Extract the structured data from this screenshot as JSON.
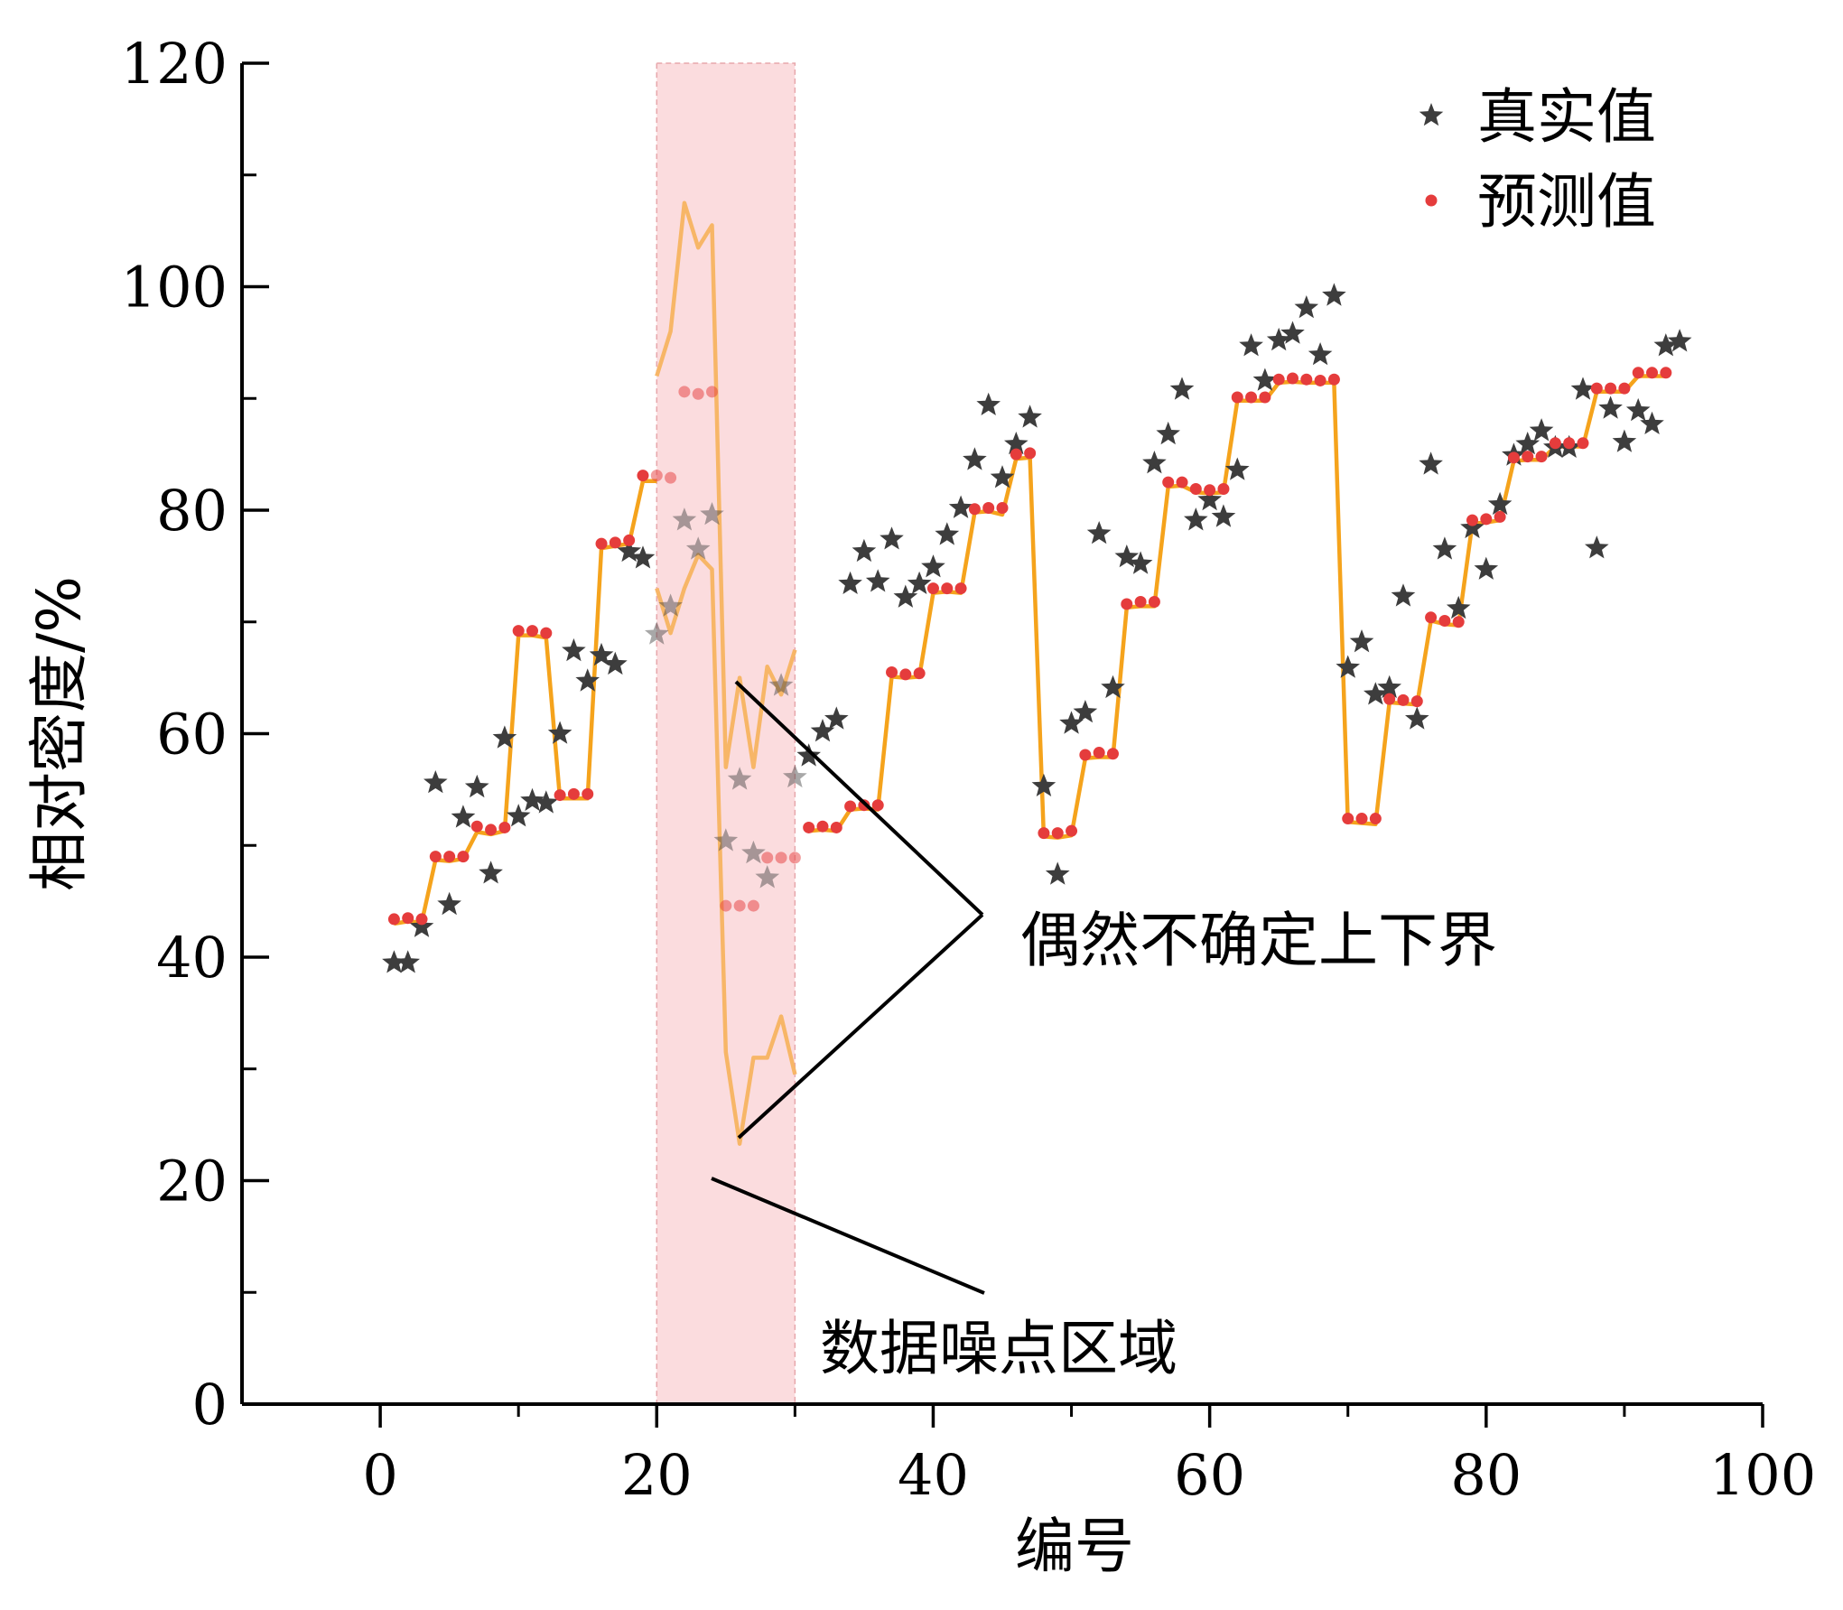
{
  "chart_data": {
    "type": "scatter",
    "title": "",
    "xlabel": "编号",
    "ylabel": "相对密度/%",
    "xlim": [
      -10,
      100
    ],
    "ylim": [
      0,
      120
    ],
    "x_major_ticks": [
      0,
      20,
      40,
      60,
      80,
      100
    ],
    "x_minor_ticks": [
      10,
      30,
      50,
      70,
      90
    ],
    "y_major_ticks": [
      0,
      20,
      40,
      60,
      80,
      100,
      120
    ],
    "y_minor_ticks": [
      10,
      30,
      50,
      70,
      90,
      110
    ],
    "x_tick_labels": [
      "0",
      "20",
      "40",
      "60",
      "80",
      "100"
    ],
    "y_tick_labels": [
      "0",
      "20",
      "40",
      "60",
      "80",
      "100",
      "120"
    ],
    "grid": false,
    "legend_position": "top-right",
    "noise_region": {
      "x_range": [
        20,
        30
      ],
      "color": "#fbdcde",
      "label": "数据噪点区域"
    },
    "bounds_label": "偶然不确定上下界",
    "series": [
      {
        "name": "真实值",
        "marker": "star",
        "color": "#3d3d3d",
        "points": [
          [
            1,
            39.5
          ],
          [
            2,
            39.5
          ],
          [
            3,
            42.7
          ],
          [
            4,
            55.6
          ],
          [
            5,
            44.7
          ],
          [
            6,
            52.5
          ],
          [
            7,
            55.2
          ],
          [
            8,
            47.5
          ],
          [
            9,
            59.6
          ],
          [
            10,
            52.6
          ],
          [
            11,
            54
          ],
          [
            12,
            53.8
          ],
          [
            13,
            60
          ],
          [
            14,
            67.4
          ],
          [
            15,
            64.7
          ],
          [
            16,
            67
          ],
          [
            17,
            66.2
          ],
          [
            18,
            76.3
          ],
          [
            19,
            75.7
          ],
          [
            20,
            68.9
          ],
          [
            21,
            71.4
          ],
          [
            22,
            79.1
          ],
          [
            23,
            76.5
          ],
          [
            24,
            79.6
          ],
          [
            25,
            50.4
          ],
          [
            26,
            55.9
          ],
          [
            27,
            49.3
          ],
          [
            28,
            47.1
          ],
          [
            29,
            64.3
          ],
          [
            30,
            56.1
          ],
          [
            31,
            58
          ],
          [
            32,
            60.2
          ],
          [
            33,
            61.3
          ],
          [
            34,
            73.4
          ],
          [
            35,
            76.3
          ],
          [
            36,
            73.6
          ],
          [
            37,
            77.4
          ],
          [
            38,
            72.2
          ],
          [
            39,
            73.4
          ],
          [
            40,
            74.9
          ],
          [
            41,
            77.8
          ],
          [
            42,
            80.2
          ],
          [
            43,
            84.5
          ],
          [
            44,
            89.4
          ],
          [
            45,
            82.9
          ],
          [
            46,
            85.9
          ],
          [
            47,
            88.3
          ],
          [
            48,
            55.3
          ],
          [
            49,
            47.4
          ],
          [
            50,
            60.9
          ],
          [
            51,
            61.9
          ],
          [
            52,
            77.9
          ],
          [
            53,
            64.1
          ],
          [
            54,
            75.8
          ],
          [
            55,
            75.2
          ],
          [
            56,
            84.2
          ],
          [
            57,
            86.8
          ],
          [
            58,
            90.8
          ],
          [
            59,
            79.1
          ],
          [
            60,
            80.9
          ],
          [
            61,
            79.4
          ],
          [
            62,
            83.6
          ],
          [
            63,
            94.7
          ],
          [
            64,
            91.6
          ],
          [
            65,
            95.2
          ],
          [
            66,
            95.8
          ],
          [
            67,
            98.1
          ],
          [
            68,
            93.9
          ],
          [
            69,
            99.2
          ],
          [
            70,
            65.9
          ],
          [
            71,
            68.2
          ],
          [
            72,
            63.5
          ],
          [
            73,
            64.1
          ],
          [
            74,
            72.3
          ],
          [
            75,
            61.3
          ],
          [
            76,
            84.1
          ],
          [
            77,
            76.5
          ],
          [
            78,
            71.2
          ],
          [
            79,
            78.4
          ],
          [
            80,
            74.7
          ],
          [
            81,
            80.5
          ],
          [
            82,
            84.9
          ],
          [
            83,
            85.9
          ],
          [
            84,
            87.1
          ],
          [
            85,
            85.6
          ],
          [
            86,
            85.6
          ],
          [
            87,
            90.8
          ],
          [
            88,
            76.6
          ],
          [
            89,
            89.1
          ],
          [
            90,
            86.1
          ],
          [
            91,
            88.9
          ],
          [
            92,
            87.7
          ],
          [
            93,
            94.7
          ],
          [
            94,
            95.1
          ]
        ]
      },
      {
        "name": "预测值",
        "marker": "circle",
        "color": "#e53c3c",
        "points": [
          [
            1,
            43.4
          ],
          [
            2,
            43.5
          ],
          [
            3,
            43.4
          ],
          [
            4,
            49
          ],
          [
            5,
            49
          ],
          [
            6,
            49
          ],
          [
            7,
            51.7
          ],
          [
            8,
            51.4
          ],
          [
            9,
            51.6
          ],
          [
            10,
            69.2
          ],
          [
            11,
            69.2
          ],
          [
            12,
            69
          ],
          [
            13,
            54.5
          ],
          [
            14,
            54.6
          ],
          [
            15,
            54.6
          ],
          [
            16,
            77
          ],
          [
            17,
            77.1
          ],
          [
            18,
            77.3
          ],
          [
            19,
            83.1
          ],
          [
            20,
            83.1
          ],
          [
            21,
            82.9
          ],
          [
            22,
            90.6
          ],
          [
            23,
            90.4
          ],
          [
            24,
            90.6
          ],
          [
            25,
            44.6
          ],
          [
            26,
            44.6
          ],
          [
            27,
            44.6
          ],
          [
            28,
            48.9
          ],
          [
            29,
            48.9
          ],
          [
            30,
            48.9
          ],
          [
            31,
            51.6
          ],
          [
            32,
            51.7
          ],
          [
            33,
            51.6
          ],
          [
            34,
            53.5
          ],
          [
            35,
            53.6
          ],
          [
            36,
            53.6
          ],
          [
            37,
            65.5
          ],
          [
            38,
            65.3
          ],
          [
            39,
            65.4
          ],
          [
            40,
            73
          ],
          [
            41,
            73
          ],
          [
            42,
            73
          ],
          [
            43,
            80.1
          ],
          [
            44,
            80.2
          ],
          [
            45,
            80.2
          ],
          [
            46,
            85
          ],
          [
            47,
            85.1
          ],
          [
            48,
            51.1
          ],
          [
            49,
            51.1
          ],
          [
            50,
            51.3
          ],
          [
            51,
            58.1
          ],
          [
            52,
            58.3
          ],
          [
            53,
            58.2
          ],
          [
            54,
            71.6
          ],
          [
            55,
            71.8
          ],
          [
            56,
            71.8
          ],
          [
            57,
            82.5
          ],
          [
            58,
            82.5
          ],
          [
            59,
            81.9
          ],
          [
            60,
            81.8
          ],
          [
            61,
            81.9
          ],
          [
            62,
            90.1
          ],
          [
            63,
            90.1
          ],
          [
            64,
            90.1
          ],
          [
            65,
            91.7
          ],
          [
            66,
            91.8
          ],
          [
            67,
            91.7
          ],
          [
            68,
            91.6
          ],
          [
            69,
            91.7
          ],
          [
            70,
            52.4
          ],
          [
            71,
            52.4
          ],
          [
            72,
            52.4
          ],
          [
            73,
            63.1
          ],
          [
            74,
            63
          ],
          [
            75,
            62.9
          ],
          [
            76,
            70.4
          ],
          [
            77,
            70.1
          ],
          [
            78,
            70
          ],
          [
            79,
            79.1
          ],
          [
            80,
            79.2
          ],
          [
            81,
            79.4
          ],
          [
            82,
            84.7
          ],
          [
            83,
            84.8
          ],
          [
            84,
            84.8
          ],
          [
            85,
            86
          ],
          [
            86,
            86
          ],
          [
            87,
            86
          ],
          [
            88,
            90.9
          ],
          [
            89,
            90.9
          ],
          [
            90,
            90.9
          ],
          [
            91,
            92.3
          ],
          [
            92,
            92.3
          ],
          [
            93,
            92.3
          ]
        ]
      },
      {
        "name": "",
        "marker": "line",
        "color": "#f5a31c",
        "points": [
          [
            1,
            43
          ],
          [
            2,
            43.2
          ],
          [
            3,
            43.1
          ],
          [
            4,
            48.7
          ],
          [
            5,
            48.6
          ],
          [
            6,
            48.8
          ],
          [
            7,
            51.2
          ],
          [
            8,
            51
          ],
          [
            9,
            51.3
          ],
          [
            10,
            68.8
          ],
          [
            11,
            68.8
          ],
          [
            12,
            68.6
          ],
          [
            13,
            54.2
          ],
          [
            14,
            54.2
          ],
          [
            15,
            54.2
          ],
          [
            16,
            76.6
          ],
          [
            17,
            76.8
          ],
          [
            18,
            77
          ],
          [
            19,
            82.6
          ],
          [
            20,
            82.6
          ],
          [
            31,
            51.3
          ],
          [
            32,
            51.4
          ],
          [
            33,
            51.3
          ],
          [
            34,
            53.2
          ],
          [
            35,
            53.3
          ],
          [
            36,
            53.2
          ],
          [
            37,
            65.1
          ],
          [
            38,
            65
          ],
          [
            39,
            65.1
          ],
          [
            40,
            72.6
          ],
          [
            41,
            72.7
          ],
          [
            42,
            72.6
          ],
          [
            43,
            79.8
          ],
          [
            44,
            79.9
          ],
          [
            45,
            79.6
          ],
          [
            46,
            84.6
          ],
          [
            47,
            84.7
          ],
          [
            48,
            50.8
          ],
          [
            49,
            50.7
          ],
          [
            50,
            50.9
          ],
          [
            51,
            57.8
          ],
          [
            52,
            57.9
          ],
          [
            53,
            57.9
          ],
          [
            54,
            71.3
          ],
          [
            55,
            71.4
          ],
          [
            56,
            71.4
          ],
          [
            57,
            82.1
          ],
          [
            58,
            82.2
          ],
          [
            59,
            81.6
          ],
          [
            60,
            81.5
          ],
          [
            61,
            81.6
          ],
          [
            62,
            89.8
          ],
          [
            63,
            89.8
          ],
          [
            64,
            89.8
          ],
          [
            65,
            91.4
          ],
          [
            66,
            91.5
          ],
          [
            67,
            91.4
          ],
          [
            68,
            91.4
          ],
          [
            69,
            91.4
          ],
          [
            70,
            52.1
          ],
          [
            71,
            52
          ],
          [
            72,
            51.9
          ],
          [
            73,
            62.8
          ],
          [
            74,
            62.7
          ],
          [
            75,
            62.6
          ],
          [
            76,
            70.1
          ],
          [
            77,
            69.8
          ],
          [
            78,
            69.7
          ],
          [
            79,
            78.8
          ],
          [
            80,
            78.9
          ],
          [
            81,
            79.1
          ],
          [
            82,
            84.4
          ],
          [
            83,
            84.5
          ],
          [
            84,
            84.5
          ],
          [
            85,
            85.7
          ],
          [
            86,
            85.7
          ],
          [
            87,
            85.7
          ],
          [
            88,
            90.6
          ],
          [
            89,
            90.6
          ],
          [
            90,
            90.6
          ],
          [
            91,
            92
          ],
          [
            92,
            92
          ],
          [
            93,
            92
          ]
        ]
      },
      {
        "name": "",
        "marker": "line",
        "color": "#f7b667",
        "points": [
          [
            20,
            92
          ],
          [
            21,
            96
          ],
          [
            22,
            107.5
          ],
          [
            23,
            103.5
          ],
          [
            24,
            105.5
          ],
          [
            25,
            57
          ],
          [
            26,
            65
          ],
          [
            27,
            57
          ],
          [
            28,
            66
          ],
          [
            29,
            63.5
          ],
          [
            30,
            67.5
          ]
        ]
      },
      {
        "name": "",
        "marker": "line",
        "color": "#f7b667",
        "points": [
          [
            20,
            73
          ],
          [
            21,
            69
          ],
          [
            22,
            73
          ],
          [
            23,
            76
          ],
          [
            24,
            74.7
          ],
          [
            25,
            31.5
          ],
          [
            26,
            23.3
          ],
          [
            27,
            31
          ],
          [
            28,
            31
          ],
          [
            29,
            34.7
          ],
          [
            30,
            29.5
          ]
        ]
      }
    ]
  }
}
